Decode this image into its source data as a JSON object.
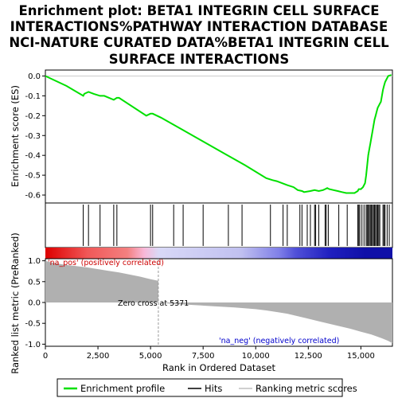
{
  "chart_data": {
    "type": "line",
    "title_lines": [
      "Enrichment plot: BETA1 INTEGRIN CELL SURFACE",
      "INTERACTIONS%PATHWAY INTERACTION DATABASE",
      "NCI-NATURE CURATED DATA%BETA1 INTEGRIN CELL",
      "SURFACE INTERACTIONS"
    ],
    "xlabel": "Rank in Ordered Dataset",
    "xlim": [
      0,
      16500
    ],
    "x_ticks": [
      0,
      2500,
      5000,
      7500,
      10000,
      12500,
      15000
    ],
    "x_tick_labels": [
      "0",
      "2,500",
      "5,000",
      "7,500",
      "10,000",
      "12,500",
      "15,000"
    ],
    "top_panel": {
      "ylabel": "Enrichment score (ES)",
      "ylim": [
        -0.64,
        0.03
      ],
      "y_ticks": [
        0.0,
        -0.1,
        -0.2,
        -0.3,
        -0.4,
        -0.5,
        -0.6
      ],
      "y_tick_labels": [
        "0.0",
        "-0.1",
        "-0.2",
        "-0.3",
        "-0.4",
        "-0.5",
        "-0.6"
      ],
      "series": [
        {
          "name": "Enrichment profile",
          "color": "#00e000",
          "x": [
            0,
            1000,
            1800,
            1850,
            2050,
            2300,
            2600,
            2800,
            3250,
            3400,
            3500,
            4800,
            5000,
            5100,
            5500,
            6500,
            7500,
            8500,
            9500,
            10500,
            10800,
            11000,
            11500,
            11800,
            12000,
            12200,
            12300,
            12600,
            12800,
            13000,
            13200,
            13300,
            13400,
            13500,
            13700,
            13900,
            14100,
            14300,
            14500,
            14700,
            14850,
            14900,
            15000,
            15100,
            15200,
            15250,
            15300,
            15350,
            15400,
            15450,
            15500,
            15550,
            15600,
            15650,
            15700,
            15750,
            15800,
            15850,
            15900,
            15950,
            16000,
            16050,
            16100,
            16150,
            16200,
            16300,
            16450
          ],
          "y": [
            0.0,
            -0.05,
            -0.1,
            -0.09,
            -0.08,
            -0.09,
            -0.1,
            -0.1,
            -0.12,
            -0.11,
            -0.11,
            -0.2,
            -0.19,
            -0.19,
            -0.21,
            -0.27,
            -0.33,
            -0.39,
            -0.45,
            -0.515,
            -0.525,
            -0.53,
            -0.55,
            -0.56,
            -0.575,
            -0.58,
            -0.585,
            -0.58,
            -0.575,
            -0.58,
            -0.575,
            -0.57,
            -0.565,
            -0.57,
            -0.575,
            -0.58,
            -0.585,
            -0.59,
            -0.59,
            -0.59,
            -0.58,
            -0.57,
            -0.57,
            -0.56,
            -0.54,
            -0.5,
            -0.45,
            -0.4,
            -0.37,
            -0.34,
            -0.31,
            -0.28,
            -0.25,
            -0.22,
            -0.2,
            -0.18,
            -0.16,
            -0.15,
            -0.14,
            -0.13,
            -0.1,
            -0.07,
            -0.05,
            -0.03,
            -0.02,
            0.0,
            0.005
          ]
        }
      ]
    },
    "hits": {
      "name": "Hits",
      "color": "#000000",
      "x": [
        1800,
        2050,
        2600,
        3250,
        3400,
        5000,
        5100,
        6100,
        6550,
        7500,
        8700,
        9350,
        10700,
        11300,
        11500,
        12100,
        12200,
        12450,
        12600,
        12800,
        12850,
        13000,
        13300,
        13350,
        13450,
        13950,
        14350,
        14850,
        14900,
        14950,
        15050,
        15150,
        15250,
        15300,
        15350,
        15400,
        15450,
        15500,
        15550,
        15600,
        15650,
        15700,
        15750,
        15800,
        15850,
        15900,
        16050,
        16100,
        16150,
        16250,
        16350
      ]
    },
    "color_bar": {
      "label": "ranked-list-color-bar",
      "stops": [
        {
          "x": 0,
          "color": "#dd0000"
        },
        {
          "x": 1100,
          "color": "#e83030"
        },
        {
          "x": 2000,
          "color": "#f05858"
        },
        {
          "x": 3900,
          "color": "#f38080"
        },
        {
          "x": 4700,
          "color": "#f8b8d8"
        },
        {
          "x": 5400,
          "color": "#d9d9f7"
        },
        {
          "x": 9300,
          "color": "#c0c0f0"
        },
        {
          "x": 11100,
          "color": "#8080e8"
        },
        {
          "x": 11900,
          "color": "#5050d8"
        },
        {
          "x": 13500,
          "color": "#2020c0"
        },
        {
          "x": 15200,
          "color": "#1010a8"
        },
        {
          "x": 16500,
          "color": "#1010a8"
        }
      ]
    },
    "bottom_panel": {
      "ylabel": "Ranked list metric (PreRanked)",
      "ylim": [
        -1.05,
        1.05
      ],
      "y_ticks": [
        1.0,
        0.5,
        0.0,
        -0.5,
        -1.0
      ],
      "y_tick_labels": [
        "1.0",
        "0.5",
        "0.0",
        "-0.5",
        "-1.0"
      ],
      "series": [
        {
          "name": "Ranking metric scores",
          "color": "#b0b0b0",
          "x": [
            0,
            200,
            600,
            1000,
            1500,
            2000,
            2500,
            3000,
            3500,
            4000,
            4500,
            5000,
            5370,
            5371,
            6000,
            7000,
            8000,
            9000,
            10000,
            10500,
            11000,
            11500,
            12000,
            12500,
            13000,
            13500,
            14000,
            14500,
            15000,
            15500,
            16000,
            16300,
            16500
          ],
          "y": [
            1.0,
            0.97,
            0.93,
            0.9,
            0.87,
            0.84,
            0.8,
            0.76,
            0.72,
            0.67,
            0.62,
            0.56,
            0.52,
            0.0,
            -0.03,
            -0.06,
            -0.09,
            -0.12,
            -0.16,
            -0.19,
            -0.23,
            -0.27,
            -0.33,
            -0.39,
            -0.45,
            -0.51,
            -0.57,
            -0.63,
            -0.7,
            -0.77,
            -0.86,
            -0.92,
            -0.98
          ]
        }
      ],
      "annotations": {
        "pos": "'na_pos' (positively correlated)",
        "neg": "'na_neg' (negatively correlated)",
        "zero_cross": "Zero cross at 5371",
        "zero_cross_x": 5371
      }
    },
    "legend": [
      "Enrichment profile",
      "Hits",
      "Ranking metric scores"
    ],
    "legend_position": "bottom"
  }
}
